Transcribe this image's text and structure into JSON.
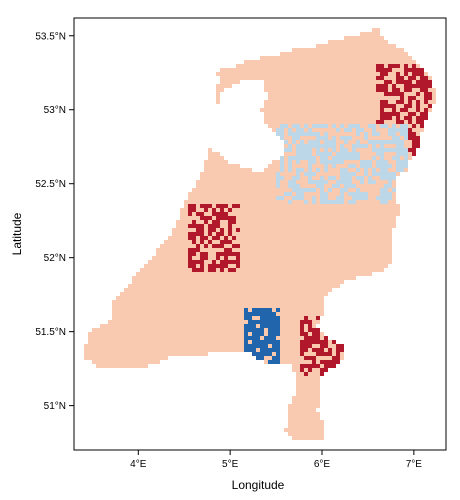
{
  "figure": {
    "xlabel": "Longitude",
    "ylabel": "Latitude",
    "x_ticks": [
      "4°E",
      "5°E",
      "6°E",
      "7°E"
    ],
    "y_ticks": [
      "51°N",
      "51.5°N",
      "52°N",
      "52.5°N",
      "53°N",
      "53.5°N"
    ]
  },
  "chart_data": {
    "type": "heatmap",
    "xlabel": "Longitude",
    "ylabel": "Latitude",
    "xlim": [
      3.3,
      7.35
    ],
    "ylim": [
      50.7,
      53.62
    ],
    "x_ticks": [
      4,
      5,
      6,
      7
    ],
    "y_ticks": [
      51,
      51.5,
      52,
      52.5,
      53,
      53.5
    ],
    "grid": false,
    "legend": "none",
    "colors": {
      "background_class": "#f9c9b0",
      "light_blue_class": "#bcd8e8",
      "dark_blue_class": "#2166ac",
      "dark_red_class": "#b2182b",
      "frame": "#000000"
    },
    "note_regions": [
      {
        "class": "dark_blue_class",
        "lon": [
          5.15,
          5.55
        ],
        "lat": [
          51.25,
          51.65
        ]
      },
      {
        "class": "dark_red_class",
        "lon": [
          5.75,
          6.25
        ],
        "lat": [
          51.2,
          51.6
        ]
      },
      {
        "class": "dark_red_class",
        "lon": [
          6.6,
          7.2
        ],
        "lat": [
          52.7,
          53.3
        ]
      },
      {
        "class": "dark_red_class",
        "lon": [
          4.55,
          5.1
        ],
        "lat": [
          51.9,
          52.35
        ]
      },
      {
        "class": "light_blue_class",
        "lon": [
          5.5,
          6.95
        ],
        "lat": [
          52.35,
          52.9
        ]
      }
    ]
  }
}
